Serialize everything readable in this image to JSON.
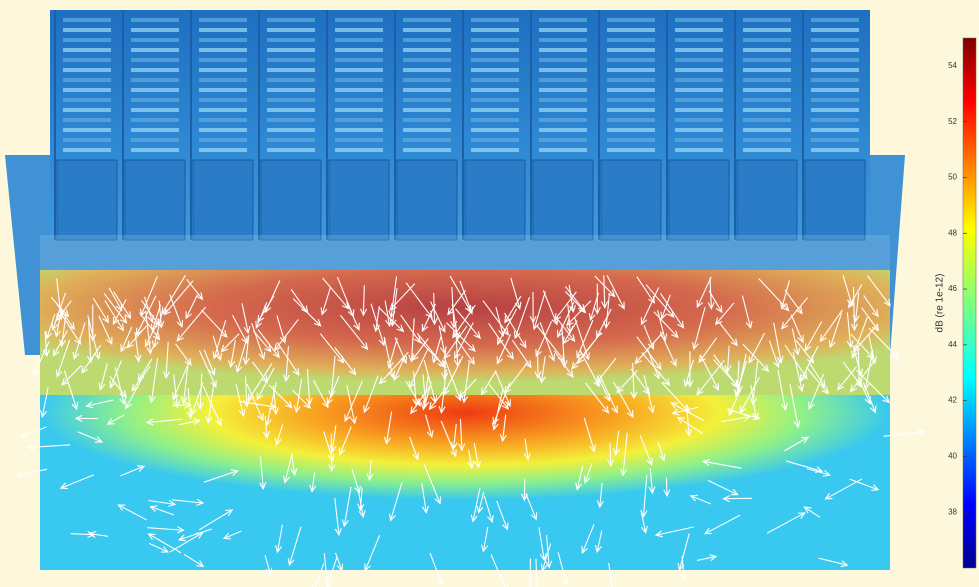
{
  "colorbar": {
    "label": "dB (re 1e-12)",
    "lim": [
      36,
      55
    ],
    "ticks": [
      38,
      40,
      42,
      44,
      46,
      48,
      50,
      52,
      54
    ]
  }
}
